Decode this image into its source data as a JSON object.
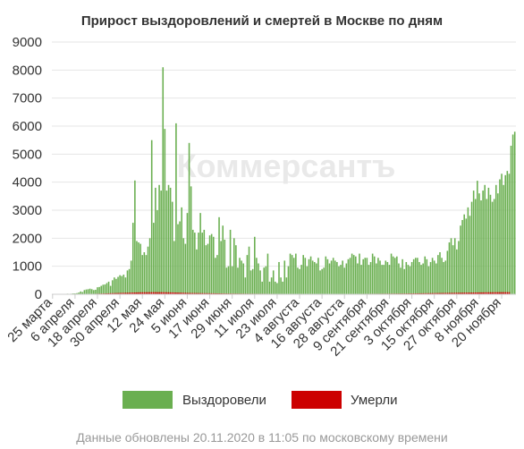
{
  "footer": "Данные обновлены 20.11.2020 в 11:05 по московскому времени",
  "watermark": "Коммерсантъ",
  "chart_data": {
    "type": "bar",
    "title": "Прирост выздоровлений и смертей в Москве по дням",
    "xlabel": "",
    "ylabel": "",
    "ylim": [
      0,
      9000
    ],
    "yticks": [
      0,
      1000,
      2000,
      3000,
      4000,
      5000,
      6000,
      7000,
      8000,
      9000
    ],
    "grid": true,
    "legend_position": "bottom",
    "x_start": "2020-03-25",
    "x_tick_labels": [
      "25 марта",
      "6 апреля",
      "18 апреля",
      "30 апреля",
      "12 мая",
      "24 мая",
      "5 июня",
      "17 июня",
      "29 июня",
      "11 июля",
      "23 июля",
      "4 августа",
      "16 августа",
      "28 августа",
      "9 сентября",
      "21 сентября",
      "3 октября",
      "15 октября",
      "27 октября",
      "8 ноября",
      "20 ноября"
    ],
    "series": [
      {
        "name": "Выздоровели",
        "color": "#6aaf50",
        "values": [
          0,
          0,
          0,
          5,
          10,
          10,
          15,
          15,
          20,
          10,
          20,
          30,
          30,
          40,
          60,
          100,
          80,
          150,
          170,
          180,
          200,
          180,
          150,
          160,
          250,
          260,
          300,
          340,
          350,
          400,
          450,
          300,
          500,
          600,
          550,
          620,
          680,
          650,
          700,
          600,
          850,
          900,
          1200,
          2550,
          4060,
          1900,
          1850,
          1800,
          1400,
          1500,
          1400,
          1700,
          2000,
          5500,
          2550,
          3800,
          3000,
          3900,
          3700,
          8100,
          5900,
          3700,
          3900,
          3800,
          3300,
          1900,
          6100,
          2500,
          2600,
          3100,
          2000,
          1800,
          2900,
          5400,
          3850,
          2300,
          2200,
          1600,
          2200,
          2900,
          2200,
          2300,
          1750,
          1800,
          2100,
          2150,
          2050,
          1300,
          1400,
          2750,
          1900,
          2450,
          1950,
          950,
          1000,
          2300,
          1000,
          2000,
          1750,
          950,
          1300,
          1200,
          1100,
          600,
          1400,
          1700,
          850,
          900,
          2050,
          1300,
          1100,
          850,
          450,
          950,
          1000,
          1450,
          450,
          600,
          850,
          450,
          400,
          1150,
          600,
          450,
          1200,
          600,
          1000,
          1450,
          1400,
          1300,
          1450,
          950,
          900,
          1050,
          1400,
          1300,
          1000,
          1250,
          1350,
          1200,
          1150,
          1100,
          1300,
          850,
          900,
          950,
          1350,
          1250,
          1100,
          1200,
          1300,
          1200,
          1150,
          1000,
          1050,
          1200,
          950,
          1100,
          1250,
          1300,
          1450,
          1400,
          1350,
          1100,
          1450,
          1050,
          1250,
          1300,
          1300,
          1050,
          1150,
          1450,
          1350,
          1100,
          1300,
          1200,
          1050,
          1050,
          1200,
          1150,
          1050,
          1450,
          1350,
          1300,
          1350,
          1100,
          950,
          1250,
          900,
          1150,
          1050,
          1000,
          1150,
          1250,
          1300,
          1300,
          1150,
          1050,
          1100,
          1350,
          1250,
          1000,
          1150,
          1300,
          1200,
          1100,
          1400,
          1500,
          1300,
          1150,
          1200,
          1550,
          1850,
          2000,
          1750,
          2000,
          1600,
          1900,
          2450,
          2650,
          2850,
          2700,
          3100,
          2800,
          3300,
          3700,
          3400,
          4050,
          3600,
          3350,
          3700,
          3900,
          3400,
          3800,
          3550,
          3300,
          3400,
          3900,
          3600,
          4100,
          4300,
          3900,
          4250,
          4400,
          4300,
          5300,
          5700,
          5800
        ]
      },
      {
        "name": "Умерли",
        "color": "#cc0000",
        "values": [
          0,
          0,
          0,
          0,
          0,
          0,
          0,
          1,
          1,
          1,
          2,
          2,
          3,
          3,
          4,
          5,
          6,
          6,
          8,
          10,
          12,
          14,
          16,
          18,
          20,
          22,
          25,
          27,
          30,
          33,
          35,
          38,
          40,
          42,
          44,
          46,
          48,
          50,
          52,
          54,
          56,
          58,
          60,
          62,
          64,
          66,
          68,
          70,
          70,
          72,
          72,
          74,
          74,
          74,
          75,
          75,
          75,
          74,
          74,
          73,
          72,
          71,
          70,
          68,
          66,
          64,
          62,
          60,
          58,
          56,
          54,
          52,
          50,
          48,
          46,
          45,
          44,
          43,
          42,
          41,
          40,
          39,
          38,
          37,
          36,
          35,
          34,
          33,
          32,
          31,
          30,
          29,
          28,
          27,
          26,
          25,
          25,
          24,
          24,
          23,
          23,
          22,
          22,
          21,
          21,
          20,
          20,
          20,
          19,
          19,
          19,
          18,
          18,
          18,
          18,
          17,
          17,
          17,
          17,
          16,
          16,
          16,
          16,
          16,
          15,
          15,
          15,
          15,
          15,
          15,
          15,
          15,
          15,
          15,
          15,
          15,
          15,
          15,
          15,
          15,
          15,
          15,
          15,
          15,
          15,
          15,
          15,
          15,
          15,
          15,
          15,
          15,
          15,
          15,
          15,
          15,
          15,
          15,
          15,
          15,
          15,
          16,
          16,
          16,
          16,
          16,
          17,
          17,
          17,
          17,
          18,
          18,
          18,
          19,
          19,
          19,
          20,
          20,
          21,
          21,
          22,
          22,
          23,
          23,
          24,
          24,
          25,
          25,
          26,
          27,
          28,
          29,
          30,
          31,
          32,
          33,
          34,
          35,
          36,
          37,
          38,
          39,
          40,
          41,
          42,
          43,
          44,
          45,
          46,
          47,
          48,
          49,
          50,
          51,
          52,
          53,
          54,
          55,
          56,
          57,
          58,
          59,
          60,
          61,
          62,
          63,
          64,
          65,
          66,
          67,
          68,
          69,
          70,
          71,
          72,
          72,
          73,
          73,
          74,
          74,
          75,
          75,
          75,
          75,
          75
        ]
      }
    ]
  }
}
